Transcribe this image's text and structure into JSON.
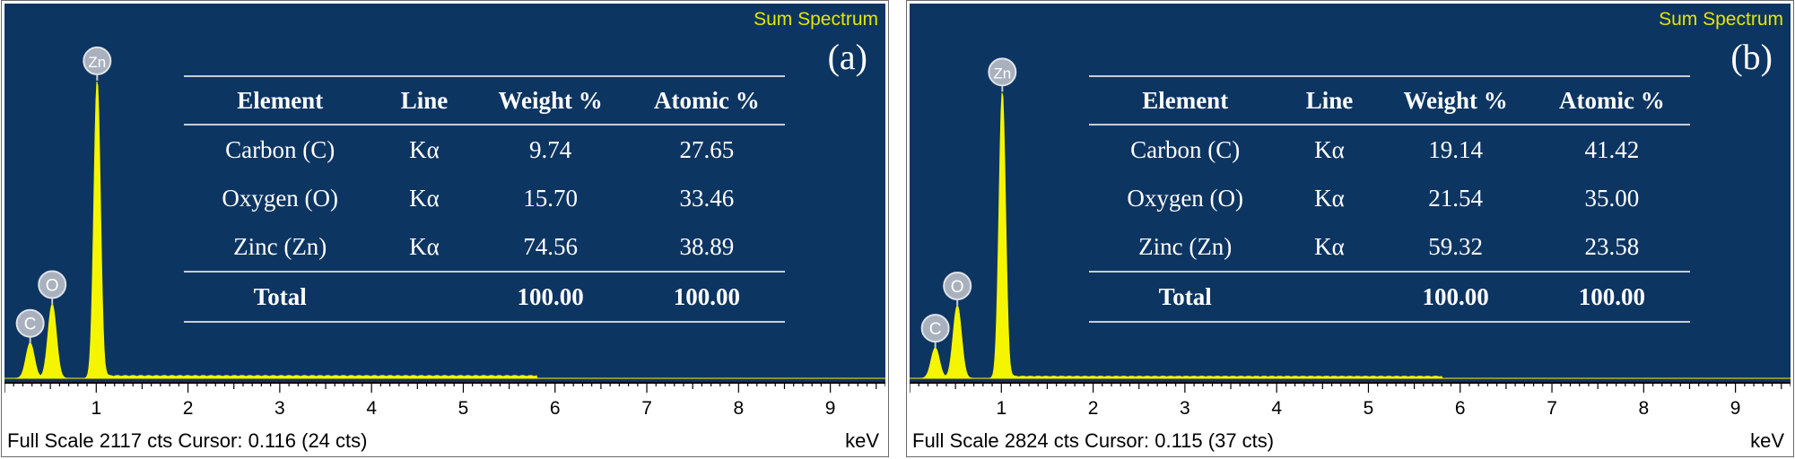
{
  "panels": [
    {
      "id": "a",
      "title": "Sum Spectrum",
      "label": "(a)",
      "table": {
        "headers": [
          "Element",
          "Line",
          "Weight %",
          "Atomic %"
        ],
        "rows": [
          [
            "Carbon (C)",
            "Kα",
            "9.74",
            "27.65"
          ],
          [
            "Oxygen (O)",
            "Kα",
            "15.70",
            "33.46"
          ],
          [
            "Zinc (Zn)",
            "Kα",
            "74.56",
            "38.89"
          ]
        ],
        "total": [
          "Total",
          "",
          "100.00",
          "100.00"
        ]
      },
      "footer": "Full Scale 2117 cts Cursor: 0.116  (24 cts)",
      "unit": "keV"
    },
    {
      "id": "b",
      "title": "Sum Spectrum",
      "label": "(b)",
      "table": {
        "headers": [
          "Element",
          "Line",
          "Weight %",
          "Atomic %"
        ],
        "rows": [
          [
            "Carbon (C)",
            "Kα",
            "19.14",
            "41.42"
          ],
          [
            "Oxygen (O)",
            "Kα",
            "21.54",
            "35.00"
          ],
          [
            "Zinc (Zn)",
            "Kα",
            "59.32",
            "23.58"
          ]
        ],
        "total": [
          "Total",
          "",
          "100.00",
          "100.00"
        ]
      },
      "footer": "Full Scale 2824 cts Cursor: 0.115  (37 cts)",
      "unit": "keV"
    }
  ],
  "chart_data": [
    {
      "type": "line",
      "title": "Sum Spectrum",
      "xlabel": "keV",
      "ylabel": "",
      "xlim": [
        0,
        9.6
      ],
      "ylim": [
        0,
        2117
      ],
      "xticks": [
        1,
        2,
        3,
        4,
        5,
        6,
        7,
        8,
        9
      ],
      "series_color": "#f5f500",
      "background": "#0d3562",
      "peaks": [
        {
          "element": "C",
          "x": 0.28,
          "y": 200
        },
        {
          "element": "O",
          "x": 0.52,
          "y": 420
        },
        {
          "element": "Zn",
          "x": 1.01,
          "y": 1690
        }
      ]
    },
    {
      "type": "line",
      "title": "Sum Spectrum",
      "xlabel": "keV",
      "ylabel": "",
      "xlim": [
        0,
        9.6
      ],
      "ylim": [
        0,
        2824
      ],
      "xticks": [
        1,
        2,
        3,
        4,
        5,
        6,
        7,
        8,
        9
      ],
      "series_color": "#f5f500",
      "background": "#0d3562",
      "peaks": [
        {
          "element": "C",
          "x": 0.28,
          "y": 230
        },
        {
          "element": "O",
          "x": 0.52,
          "y": 550
        },
        {
          "element": "Zn",
          "x": 1.01,
          "y": 2170
        }
      ]
    }
  ]
}
